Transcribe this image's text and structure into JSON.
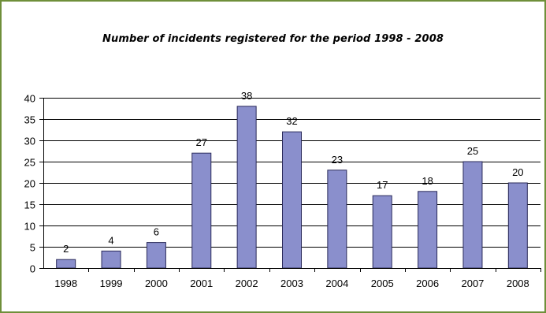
{
  "chart_data": {
    "type": "bar",
    "title": "Number of incidents registered for the period 1998 - 2008",
    "xlabel": "",
    "ylabel": "",
    "categories": [
      "1998",
      "1999",
      "2000",
      "2001",
      "2002",
      "2003",
      "2004",
      "2005",
      "2006",
      "2007",
      "2008"
    ],
    "values": [
      2,
      4,
      6,
      27,
      38,
      32,
      23,
      17,
      18,
      25,
      20
    ],
    "ylim": [
      0,
      40
    ],
    "yticks": [
      0,
      5,
      10,
      15,
      20,
      25,
      30,
      35,
      40
    ],
    "grid": true,
    "legend": "none",
    "colors": {
      "bar_fill": "#8a8fcc",
      "bar_stroke": "#2a2a5a",
      "frame": "#6f8f3a",
      "grid": "#000000"
    }
  }
}
